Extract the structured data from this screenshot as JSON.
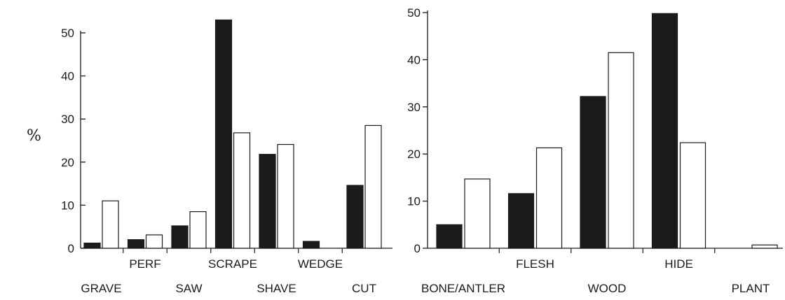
{
  "ylabel": "%",
  "colors": {
    "filled": "#1b1b1b",
    "open": "#ffffff",
    "stroke": "#1b1b1b"
  },
  "chart_data": [
    {
      "type": "bar",
      "categories": [
        "GRAVE",
        "PERF",
        "SAW",
        "SCRAPE",
        "SHAVE",
        "WEDGE",
        "CUT"
      ],
      "series": [
        {
          "fill": "filled",
          "values": [
            1.2,
            2.0,
            5.2,
            53.0,
            21.8,
            1.6,
            14.6
          ]
        },
        {
          "fill": "open",
          "values": [
            11.0,
            3.1,
            8.5,
            26.8,
            24.1,
            0,
            28.5
          ]
        }
      ],
      "ylim": [
        0,
        50
      ],
      "yticks": [
        "0",
        "10",
        "20",
        "30",
        "40",
        "50"
      ]
    },
    {
      "type": "bar",
      "categories": [
        "BONE/ANTLER",
        "FLESH",
        "WOOD",
        "HIDE",
        "PLANT"
      ],
      "series": [
        {
          "fill": "filled",
          "values": [
            5.0,
            11.6,
            32.2,
            49.8,
            0
          ]
        },
        {
          "fill": "open",
          "values": [
            14.7,
            21.3,
            41.5,
            22.4,
            0.7
          ]
        }
      ],
      "ylim": [
        0,
        50
      ],
      "yticks": [
        "0",
        "10",
        "20",
        "30",
        "40",
        "50"
      ]
    }
  ]
}
